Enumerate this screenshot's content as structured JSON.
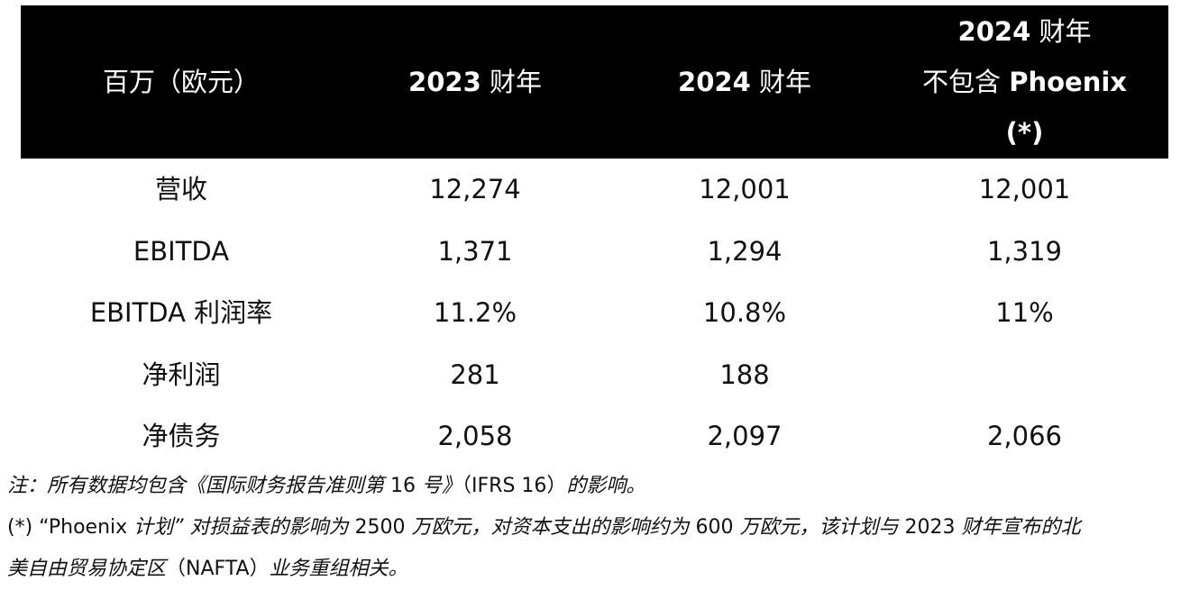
{
  "table": {
    "headers": {
      "col1": "百万（欧元）",
      "col2_year": "2023",
      "col2_suffix": " 财年",
      "col3_year": "2024",
      "col3_suffix": " 财年",
      "col4_line1_year": "2024",
      "col4_line1_suffix": " 财年",
      "col4_line2_prefix": "不包含 ",
      "col4_line2_bold": "Phoenix",
      "col4_line3": "(*)"
    },
    "rows": [
      {
        "label": "营收",
        "fy2023": "12,274",
        "fy2024": "12,001",
        "fy2024_ex": "12,001"
      },
      {
        "label": "EBITDA",
        "fy2023": "1,371",
        "fy2024": "1,294",
        "fy2024_ex": "1,319"
      },
      {
        "label": "EBITDA 利润率",
        "fy2023": "11.2%",
        "fy2024": "10.8%",
        "fy2024_ex": "11%"
      },
      {
        "label": "净利润",
        "fy2023": "281",
        "fy2024": "188",
        "fy2024_ex": ""
      },
      {
        "label": "净债务",
        "fy2023": "2,058",
        "fy2024": "2,097",
        "fy2024_ex": "2,066"
      }
    ]
  },
  "notes": {
    "note1_italic": "注：所有数据均包含《国际财务报告准则第",
    "note1_num": " 16 ",
    "note1_italic2": "号》",
    "note1_plain": "（IFRS 16）",
    "note1_italic3": "的影响。",
    "note2_prefix": "(*) “Phoenix ",
    "note2_italic1": "计划” 对损益表的影响为",
    "note2_num1": " 2500 ",
    "note2_italic2": "万欧元，对资本支出的影响约为",
    "note2_num2": " 600 ",
    "note2_italic3": "万欧元，该计划与",
    "note2_num3": " 2023 ",
    "note2_italic4": "财年宣布的北",
    "note3_italic1": "美自由贸易协定区",
    "note3_plain": "（NAFTA）",
    "note3_italic2": "业务重组相关。"
  }
}
